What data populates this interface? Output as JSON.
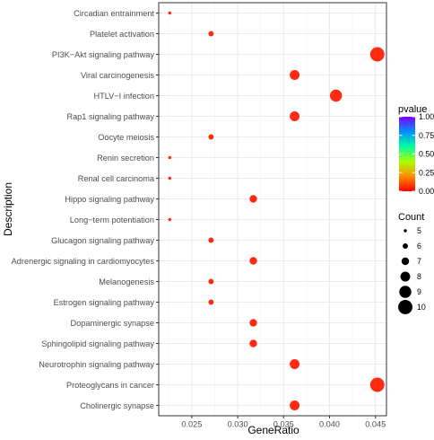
{
  "chart_data": {
    "type": "scatter",
    "xlabel": "GeneRatio",
    "ylabel": "Description",
    "xlim": [
      0.0214,
      0.0462
    ],
    "x_ticks": [
      0.025,
      0.03,
      0.035,
      0.04,
      0.045
    ],
    "x_tick_labels": [
      "0.025",
      "0.030",
      "0.035",
      "0.040",
      "0.045"
    ],
    "grid": true,
    "legend_placement": "right",
    "categories": [
      "Circadian entrainment",
      "Platelet activation",
      "PI3K−Akt signaling pathway",
      "Viral carcinogenesis",
      "HTLV−I infection",
      "Rap1 signaling pathway",
      "Oocyte meiosis",
      "Renin secretion",
      "Renal cell carcinoma",
      "Hippo signaling pathway",
      "Long−term potentiation",
      "Glucagon signaling pathway",
      "Adrenergic signaling in cardiomyocytes",
      "Melanogenesis",
      "Estrogen signaling pathway",
      "Dopaminergic synapse",
      "Sphingolipid signaling pathway",
      "Neurotrophin signaling pathway",
      "Proteoglycans in cancer",
      "Cholinergic synapse"
    ],
    "points": [
      {
        "term": "Circadian entrainment",
        "gene_ratio": 0.0226,
        "count": 5,
        "pvalue": 0.0
      },
      {
        "term": "Platelet activation",
        "gene_ratio": 0.0271,
        "count": 6,
        "pvalue": 0.0
      },
      {
        "term": "PI3K−Akt signaling pathway",
        "gene_ratio": 0.0452,
        "count": 10,
        "pvalue": 0.0
      },
      {
        "term": "Viral carcinogenesis",
        "gene_ratio": 0.0362,
        "count": 8,
        "pvalue": 0.0
      },
      {
        "term": "HTLV−I infection",
        "gene_ratio": 0.0407,
        "count": 9,
        "pvalue": 0.0
      },
      {
        "term": "Rap1 signaling pathway",
        "gene_ratio": 0.0362,
        "count": 8,
        "pvalue": 0.0
      },
      {
        "term": "Oocyte meiosis",
        "gene_ratio": 0.0271,
        "count": 6,
        "pvalue": 0.0
      },
      {
        "term": "Renin secretion",
        "gene_ratio": 0.0226,
        "count": 5,
        "pvalue": 0.0
      },
      {
        "term": "Renal cell carcinoma",
        "gene_ratio": 0.0226,
        "count": 5,
        "pvalue": 0.0
      },
      {
        "term": "Hippo signaling pathway",
        "gene_ratio": 0.0317,
        "count": 7,
        "pvalue": 0.0
      },
      {
        "term": "Long−term potentiation",
        "gene_ratio": 0.0226,
        "count": 5,
        "pvalue": 0.0
      },
      {
        "term": "Glucagon signaling pathway",
        "gene_ratio": 0.0271,
        "count": 6,
        "pvalue": 0.0
      },
      {
        "term": "Adrenergic signaling in cardiomyocytes",
        "gene_ratio": 0.0317,
        "count": 7,
        "pvalue": 0.0
      },
      {
        "term": "Melanogenesis",
        "gene_ratio": 0.0271,
        "count": 6,
        "pvalue": 0.0
      },
      {
        "term": "Estrogen signaling pathway",
        "gene_ratio": 0.0271,
        "count": 6,
        "pvalue": 0.0
      },
      {
        "term": "Dopaminergic synapse",
        "gene_ratio": 0.0317,
        "count": 7,
        "pvalue": 0.0
      },
      {
        "term": "Sphingolipid signaling pathway",
        "gene_ratio": 0.0317,
        "count": 7,
        "pvalue": 0.0
      },
      {
        "term": "Neurotrophin signaling pathway",
        "gene_ratio": 0.0362,
        "count": 8,
        "pvalue": 0.0
      },
      {
        "term": "Proteoglycans in cancer",
        "gene_ratio": 0.0452,
        "count": 10,
        "pvalue": 0.0
      },
      {
        "term": "Cholinergic synapse",
        "gene_ratio": 0.0362,
        "count": 8,
        "pvalue": 0.0
      }
    ],
    "color_legend": {
      "title": "pvalue",
      "ticks": [
        1.0,
        0.75,
        0.5,
        0.25,
        0.0
      ],
      "tick_labels": [
        "1.00",
        "0.75",
        "0.50",
        "0.25",
        "0.00"
      ],
      "low_color": "#ff0000",
      "high_color": "#7f00ff"
    },
    "size_legend": {
      "title": "Count",
      "values": [
        5,
        6,
        7,
        8,
        9,
        10
      ]
    },
    "point_color": "#ff2a12",
    "panel_background": "#ffffff",
    "grid_major_color": "#ebebeb",
    "grid_minor_color": "#f5f5f5",
    "border_color": "#333333"
  }
}
